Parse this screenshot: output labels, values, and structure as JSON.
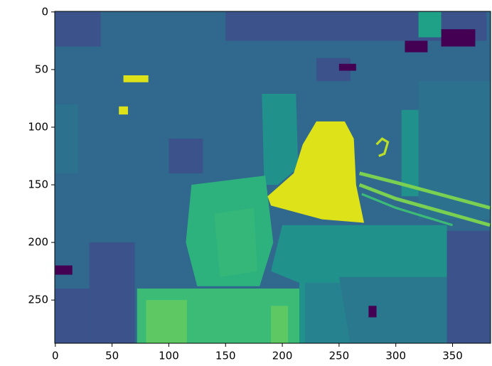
{
  "chart_data": {
    "type": "image",
    "xlim": [
      -0.5,
      383.5
    ],
    "ylim": [
      287.5,
      -0.5
    ],
    "xticks": [
      0,
      50,
      100,
      150,
      200,
      250,
      300,
      350
    ],
    "yticks": [
      0,
      50,
      100,
      150,
      200,
      250
    ]
  }
}
